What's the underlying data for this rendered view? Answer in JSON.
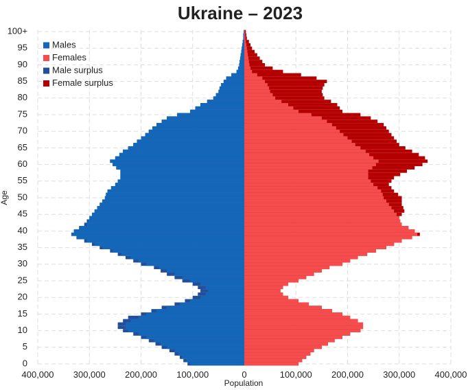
{
  "chart_data": {
    "type": "pyramid",
    "title": "Ukraine – 2023",
    "xlabel": "Population",
    "ylabel": "Age",
    "y": [
      0,
      1,
      2,
      3,
      4,
      5,
      6,
      7,
      8,
      9,
      10,
      11,
      12,
      13,
      14,
      15,
      16,
      17,
      18,
      19,
      20,
      21,
      22,
      23,
      24,
      25,
      26,
      27,
      28,
      29,
      30,
      31,
      32,
      33,
      34,
      35,
      36,
      37,
      38,
      39,
      40,
      41,
      42,
      43,
      44,
      45,
      46,
      47,
      48,
      49,
      50,
      51,
      52,
      53,
      54,
      55,
      56,
      57,
      58,
      59,
      60,
      61,
      62,
      63,
      64,
      65,
      66,
      67,
      68,
      69,
      70,
      71,
      72,
      73,
      74,
      75,
      76,
      77,
      78,
      79,
      80,
      81,
      82,
      83,
      84,
      85,
      86,
      87,
      88,
      89,
      90,
      91,
      92,
      93,
      94,
      95,
      96,
      97,
      98,
      99,
      100
    ],
    "series": [
      {
        "name": "Males",
        "color": "#1466b8",
        "side": "left",
        "values": [
          110000,
          118000,
          125000,
          135000,
          145000,
          160000,
          172000,
          185000,
          200000,
          215000,
          235000,
          245000,
          245000,
          235000,
          225000,
          200000,
          180000,
          160000,
          135000,
          115000,
          100000,
          90000,
          85000,
          90000,
          100000,
          120000,
          135000,
          150000,
          162000,
          175000,
          200000,
          215000,
          230000,
          245000,
          260000,
          280000,
          295000,
          310000,
          325000,
          335000,
          330000,
          320000,
          310000,
          305000,
          300000,
          295000,
          290000,
          285000,
          280000,
          275000,
          270000,
          268000,
          265000,
          258000,
          250000,
          245000,
          240000,
          240000,
          240000,
          248000,
          255000,
          260000,
          250000,
          242000,
          235000,
          225000,
          215000,
          208000,
          200000,
          192000,
          185000,
          178000,
          170000,
          160000,
          150000,
          130000,
          105000,
          95000,
          85000,
          72000,
          60000,
          55000,
          50000,
          48000,
          45000,
          40000,
          35000,
          25000,
          15000,
          12000,
          10000,
          9000,
          8000,
          7000,
          6000,
          5000,
          4000,
          3000,
          2000,
          2000,
          1000
        ]
      },
      {
        "name": "Females",
        "color": "#f54d4d",
        "side": "right",
        "values": [
          105000,
          112000,
          120000,
          128000,
          135000,
          150000,
          162000,
          175000,
          190000,
          205000,
          225000,
          230000,
          230000,
          220000,
          205000,
          190000,
          170000,
          150000,
          125000,
          105000,
          85000,
          75000,
          70000,
          75000,
          85000,
          105000,
          120000,
          135000,
          150000,
          165000,
          190000,
          205000,
          220000,
          238000,
          255000,
          275000,
          290000,
          305000,
          325000,
          340000,
          330000,
          318000,
          305000,
          302000,
          300000,
          305000,
          310000,
          308000,
          305000,
          305000,
          305000,
          298000,
          290000,
          285000,
          280000,
          285000,
          290000,
          302000,
          315000,
          330000,
          345000,
          355000,
          350000,
          338000,
          325000,
          312000,
          300000,
          295000,
          290000,
          285000,
          280000,
          275000,
          270000,
          258000,
          245000,
          225000,
          190000,
          185000,
          180000,
          168000,
          155000,
          152000,
          150000,
          152000,
          155000,
          160000,
          140000,
          110000,
          75000,
          55000,
          40000,
          35000,
          30000,
          25000,
          20000,
          15000,
          12000,
          9000,
          5000,
          4000,
          3000
        ]
      },
      {
        "name": "Male surplus",
        "color": "#234f9a"
      },
      {
        "name": "Female surplus",
        "color": "#b40000"
      }
    ],
    "xlim": [
      -400000,
      400000
    ],
    "xticks": [
      {
        "value": -400000,
        "label": "400,000"
      },
      {
        "value": -300000,
        "label": "300,000"
      },
      {
        "value": -200000,
        "label": "200,000"
      },
      {
        "value": -100000,
        "label": "100,000"
      },
      0,
      {
        "value": 100000,
        "label": "100,000"
      },
      {
        "value": 200000,
        "label": "200,000"
      },
      {
        "value": 300000,
        "label": "300,000"
      },
      {
        "value": 400000,
        "label": "400,000"
      }
    ],
    "ylim": [
      -0.5,
      100.5
    ],
    "yticks": [
      0,
      5,
      10,
      15,
      20,
      25,
      30,
      35,
      40,
      45,
      50,
      55,
      60,
      65,
      70,
      75,
      80,
      85,
      90,
      95,
      {
        "value": 100,
        "label": "100+"
      }
    ],
    "grid": true,
    "legend": "top-left"
  }
}
